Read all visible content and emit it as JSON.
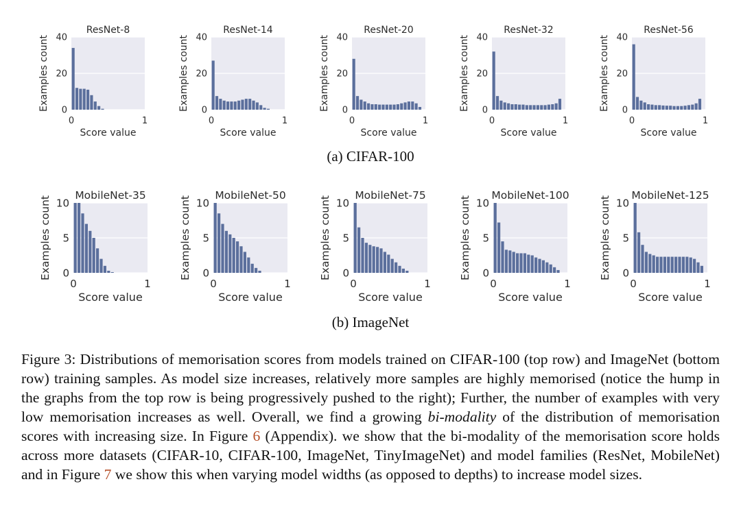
{
  "subcaptions": {
    "a": "(a)  CIFAR-100",
    "b": "(b)  ImageNet"
  },
  "caption": {
    "p1": "Figure 3: Distributions of memorisation scores from models trained on CIFAR-100 (top row) and ImageNet (bottom row) training samples. As model size increases, relatively more samples are highly memorised (notice the hump in the graphs from the top row is being progressively pushed to the right); Further, the number of examples with very low memorisation increases as well. Overall, we find a growing ",
    "emph": "bi-modality",
    "p2": " of the distribution of memorisation scores with increasing size. In Figure ",
    "ref1": "6",
    "p3": " (Appendix).  we show that the bi-modality of the memorisation score holds across more datasets (CIFAR-10, CIFAR-100, ImageNet, TinyImageNet) and model families (ResNet, MobileNet) and in Figure ",
    "ref2": "7",
    "p4": " we show this when varying model widths (as opposed to depths) to increase model sizes."
  },
  "colors": {
    "bar": "#5b6f9c",
    "panel_bg": "#eaeaf2",
    "grid": "#ffffff",
    "link": "#b5502a"
  },
  "chart_data": [
    {
      "type": "bar",
      "title": "ResNet-8",
      "xlabel": "Score value",
      "ylabel": "Examples count",
      "xlim": [
        0,
        1
      ],
      "ylim": [
        0,
        40
      ],
      "yticks": [
        0,
        20,
        40
      ],
      "xticks": [
        0,
        1
      ],
      "grid": true,
      "x": [
        0.0,
        0.05,
        0.1,
        0.15,
        0.2,
        0.25,
        0.3,
        0.35,
        0.4,
        0.45,
        0.5,
        0.55,
        0.6,
        0.65,
        0.7,
        0.75,
        0.8,
        0.85,
        0.9,
        0.95
      ],
      "values": [
        34,
        12,
        11.5,
        11.5,
        11,
        8,
        4.5,
        2,
        0.5,
        0,
        0,
        0,
        0,
        0,
        0,
        0,
        0,
        0,
        0,
        0
      ]
    },
    {
      "type": "bar",
      "title": "ResNet-14",
      "xlabel": "Score value",
      "ylabel": "Examples count",
      "xlim": [
        0,
        1
      ],
      "ylim": [
        0,
        40
      ],
      "yticks": [
        0,
        20,
        40
      ],
      "xticks": [
        0,
        1
      ],
      "grid": true,
      "x": [
        0.0,
        0.05,
        0.1,
        0.15,
        0.2,
        0.25,
        0.3,
        0.35,
        0.4,
        0.45,
        0.5,
        0.55,
        0.6,
        0.65,
        0.7,
        0.75,
        0.8,
        0.85,
        0.9,
        0.95
      ],
      "values": [
        27,
        7.5,
        6,
        5,
        4.5,
        4.5,
        4.5,
        5,
        5.5,
        6,
        6,
        5,
        4,
        2.5,
        1,
        0.5,
        0,
        0,
        0,
        0
      ]
    },
    {
      "type": "bar",
      "title": "ResNet-20",
      "xlabel": "Score value",
      "ylabel": "Examples count",
      "xlim": [
        0,
        1
      ],
      "ylim": [
        0,
        40
      ],
      "yticks": [
        0,
        20,
        40
      ],
      "xticks": [
        0,
        1
      ],
      "grid": true,
      "x": [
        0.0,
        0.05,
        0.1,
        0.15,
        0.2,
        0.25,
        0.3,
        0.35,
        0.4,
        0.45,
        0.5,
        0.55,
        0.6,
        0.65,
        0.7,
        0.75,
        0.8,
        0.85,
        0.9,
        0.95
      ],
      "values": [
        28,
        7.5,
        5.5,
        4.5,
        3.5,
        3,
        3,
        2.8,
        2.8,
        2.8,
        2.8,
        2.8,
        3,
        3.5,
        4,
        4.5,
        4.5,
        3.5,
        1.5,
        0
      ]
    },
    {
      "type": "bar",
      "title": "ResNet-32",
      "xlabel": "Score value",
      "ylabel": "Examples count",
      "xlim": [
        0,
        1
      ],
      "ylim": [
        0,
        40
      ],
      "yticks": [
        0,
        20,
        40
      ],
      "xticks": [
        0,
        1
      ],
      "grid": true,
      "x": [
        0.0,
        0.05,
        0.1,
        0.15,
        0.2,
        0.25,
        0.3,
        0.35,
        0.4,
        0.45,
        0.5,
        0.55,
        0.6,
        0.65,
        0.7,
        0.75,
        0.8,
        0.85,
        0.9,
        0.95
      ],
      "values": [
        32,
        7.5,
        5,
        4,
        3.5,
        3,
        3,
        2.8,
        2.8,
        2.5,
        2.5,
        2.5,
        2.5,
        2.5,
        2.5,
        2.8,
        3,
        3.5,
        6,
        0
      ]
    },
    {
      "type": "bar",
      "title": "ResNet-56",
      "xlabel": "Score value",
      "ylabel": "Examples count",
      "xlim": [
        0,
        1
      ],
      "ylim": [
        0,
        40
      ],
      "yticks": [
        0,
        20,
        40
      ],
      "xticks": [
        0,
        1
      ],
      "grid": true,
      "x": [
        0.0,
        0.05,
        0.1,
        0.15,
        0.2,
        0.25,
        0.3,
        0.35,
        0.4,
        0.45,
        0.5,
        0.55,
        0.6,
        0.65,
        0.7,
        0.75,
        0.8,
        0.85,
        0.9,
        0.95
      ],
      "values": [
        36,
        7,
        5,
        4,
        3,
        2.8,
        2.5,
        2.5,
        2.3,
        2.2,
        2.2,
        2,
        2,
        2,
        2.2,
        2.5,
        2.8,
        3.5,
        6,
        0
      ]
    },
    {
      "type": "bar",
      "title": "MobileNet-35",
      "xlabel": "Score value",
      "ylabel": "Examples count",
      "xlim": [
        0,
        1
      ],
      "ylim": [
        0,
        10
      ],
      "yticks": [
        0,
        5,
        10
      ],
      "xticks": [
        0,
        1
      ],
      "grid": true,
      "x": [
        0.0,
        0.05,
        0.1,
        0.15,
        0.2,
        0.25,
        0.3,
        0.35,
        0.4,
        0.45,
        0.5,
        0.55,
        0.6,
        0.65,
        0.7,
        0.75,
        0.8,
        0.85,
        0.9,
        0.95
      ],
      "values": [
        10,
        10,
        8.5,
        7,
        6,
        5,
        3.5,
        2,
        1,
        0.3,
        0.1,
        0,
        0,
        0,
        0,
        0,
        0,
        0,
        0,
        0
      ]
    },
    {
      "type": "bar",
      "title": "MobileNet-50",
      "xlabel": "Score value",
      "ylabel": "Examples count",
      "xlim": [
        0,
        1
      ],
      "ylim": [
        0,
        10
      ],
      "yticks": [
        0,
        5,
        10
      ],
      "xticks": [
        0,
        1
      ],
      "grid": true,
      "x": [
        0.0,
        0.05,
        0.1,
        0.15,
        0.2,
        0.25,
        0.3,
        0.35,
        0.4,
        0.45,
        0.5,
        0.55,
        0.6,
        0.65,
        0.7,
        0.75,
        0.8,
        0.85,
        0.9,
        0.95
      ],
      "values": [
        10,
        8.5,
        7,
        6,
        5.5,
        5,
        4.5,
        3.8,
        3,
        2.2,
        1.3,
        0.7,
        0.3,
        0,
        0,
        0,
        0,
        0,
        0,
        0
      ]
    },
    {
      "type": "bar",
      "title": "MobileNet-75",
      "xlabel": "Score value",
      "ylabel": "Examples count",
      "xlim": [
        0,
        1
      ],
      "ylim": [
        0,
        10
      ],
      "yticks": [
        0,
        5,
        10
      ],
      "xticks": [
        0,
        1
      ],
      "grid": true,
      "x": [
        0.0,
        0.05,
        0.1,
        0.15,
        0.2,
        0.25,
        0.3,
        0.35,
        0.4,
        0.45,
        0.5,
        0.55,
        0.6,
        0.65,
        0.7,
        0.75,
        0.8,
        0.85,
        0.9,
        0.95
      ],
      "values": [
        10,
        6.5,
        5,
        4.3,
        4,
        3.8,
        3.7,
        3.5,
        3,
        2.6,
        2,
        1.5,
        1,
        0.6,
        0.3,
        0,
        0,
        0,
        0,
        0
      ]
    },
    {
      "type": "bar",
      "title": "MobileNet-100",
      "xlabel": "Score value",
      "ylabel": "Examples count",
      "xlim": [
        0,
        1
      ],
      "ylim": [
        0,
        10
      ],
      "yticks": [
        0,
        5,
        10
      ],
      "xticks": [
        0,
        1
      ],
      "grid": true,
      "x": [
        0.0,
        0.05,
        0.1,
        0.15,
        0.2,
        0.25,
        0.3,
        0.35,
        0.4,
        0.45,
        0.5,
        0.55,
        0.6,
        0.65,
        0.7,
        0.75,
        0.8,
        0.85,
        0.9,
        0.95
      ],
      "values": [
        10,
        7.2,
        4.5,
        3.3,
        3.2,
        3,
        2.8,
        2.8,
        2.8,
        2.6,
        2.5,
        2.2,
        2,
        1.8,
        1.5,
        1.2,
        0.8,
        0.4,
        0,
        0
      ]
    },
    {
      "type": "bar",
      "title": "MobileNet-125",
      "xlabel": "Score value",
      "ylabel": "Examples count",
      "xlim": [
        0,
        1
      ],
      "ylim": [
        0,
        10
      ],
      "yticks": [
        0,
        5,
        10
      ],
      "xticks": [
        0,
        1
      ],
      "grid": true,
      "x": [
        0.0,
        0.05,
        0.1,
        0.15,
        0.2,
        0.25,
        0.3,
        0.35,
        0.4,
        0.45,
        0.5,
        0.55,
        0.6,
        0.65,
        0.7,
        0.75,
        0.8,
        0.85,
        0.9,
        0.95
      ],
      "values": [
        10,
        5.8,
        4,
        3,
        2.7,
        2.5,
        2.3,
        2.3,
        2.3,
        2.3,
        2.3,
        2.3,
        2.3,
        2.3,
        2.3,
        2.2,
        2,
        1.5,
        1,
        0
      ]
    }
  ]
}
